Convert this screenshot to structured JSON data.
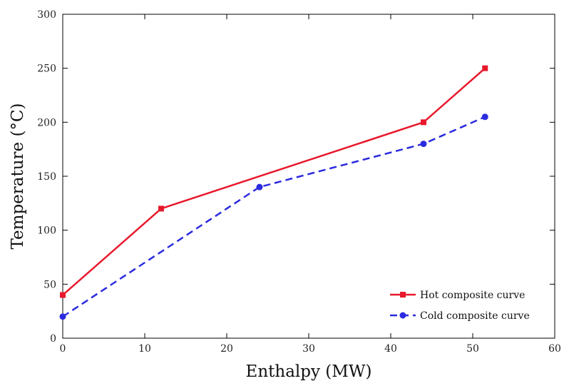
{
  "chart_data": {
    "type": "line",
    "xlabel": "Enthalpy (MW)",
    "ylabel": "Temperature (°C)",
    "xlim": [
      0,
      60
    ],
    "ylim": [
      0,
      300
    ],
    "xticks": [
      0,
      10,
      20,
      30,
      40,
      50,
      60
    ],
    "yticks": [
      0,
      50,
      100,
      150,
      200,
      250,
      300
    ],
    "grid": false,
    "legend_position": "bottom-right",
    "series": [
      {
        "name": "Hot composite curve",
        "color": "#e8192c",
        "line_style": "solid",
        "marker": "square",
        "x": [
          0,
          12,
          44,
          51.5
        ],
        "y": [
          40,
          120,
          200,
          250
        ]
      },
      {
        "name": "Cold composite curve",
        "color": "#2b2bdf",
        "line_style": "dashed",
        "marker": "circle",
        "x": [
          0,
          24,
          44,
          51.5
        ],
        "y": [
          20,
          140,
          180,
          205
        ]
      }
    ]
  }
}
